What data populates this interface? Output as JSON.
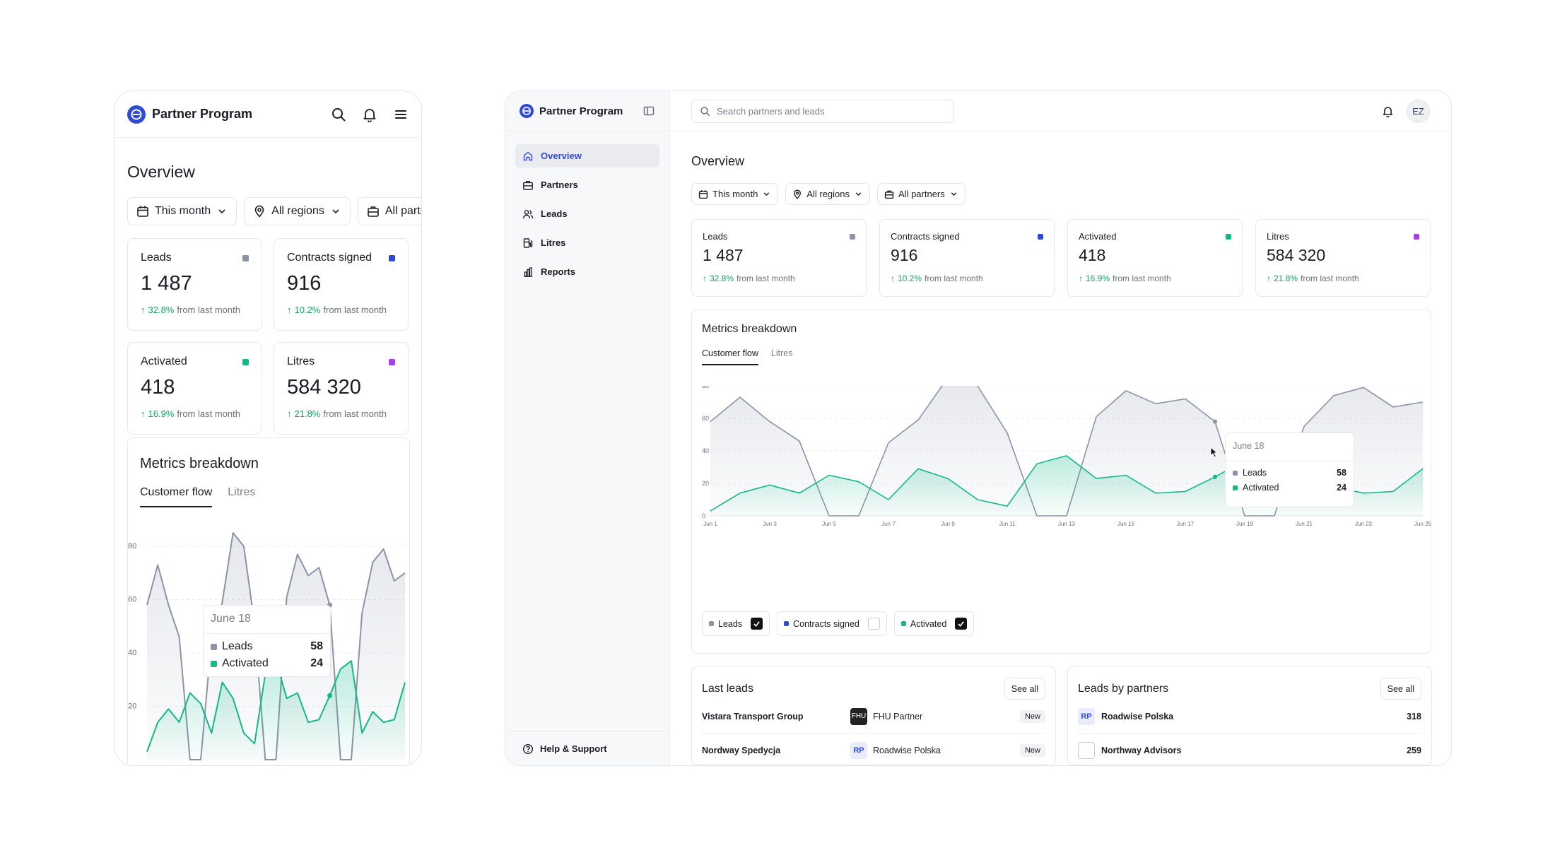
{
  "app": {
    "name": "Partner Program"
  },
  "mobile": {
    "title": "Overview",
    "filters": [
      "This month",
      "All regions",
      "All partners"
    ],
    "metrics_title": "Metrics breakdown",
    "tabs": [
      "Customer flow",
      "Litres"
    ],
    "y_ticks": [
      "80",
      "60",
      "40",
      "20"
    ]
  },
  "desktop": {
    "search_placeholder": "Search partners and leads",
    "user_initials": "EZ",
    "nav": [
      {
        "label": "Overview",
        "icon": "home-icon",
        "active": true
      },
      {
        "label": "Partners",
        "icon": "briefcase-icon"
      },
      {
        "label": "Leads",
        "icon": "users-icon"
      },
      {
        "label": "Litres",
        "icon": "fuel-icon"
      },
      {
        "label": "Reports",
        "icon": "bar-chart-icon"
      }
    ],
    "help_label": "Help & Support",
    "title": "Overview",
    "filters": [
      "This month",
      "All regions",
      "All partners"
    ],
    "metrics_title": "Metrics breakdown",
    "tabs": [
      "Customer flow",
      "Litres"
    ],
    "legend": [
      {
        "label": "Leads",
        "checked": true,
        "color": "#8b93a7"
      },
      {
        "label": "Contracts signed",
        "checked": false,
        "color": "#2f4bd6"
      },
      {
        "label": "Activated",
        "checked": true,
        "color": "#12b886"
      }
    ],
    "last_leads": {
      "title": "Last leads",
      "see_all": "See all",
      "rows": [
        {
          "lead": "Vistara Transport Group",
          "badge": "FHU",
          "partner": "FHU Partner",
          "status": "New"
        },
        {
          "lead": "Nordway Spedycja",
          "badge": "RP",
          "partner": "Roadwise Polska",
          "status": "New"
        }
      ]
    },
    "leads_by_partners": {
      "title": "Leads by partners",
      "see_all": "See all",
      "rows": [
        {
          "badge": "RP",
          "partner": "Roadwise Polska",
          "count": "318"
        },
        {
          "badge": "",
          "partner": "Northway Advisors",
          "count": "259"
        }
      ]
    }
  },
  "kpis": [
    {
      "label": "Leads",
      "value": "1 487",
      "change": "32.8%",
      "suffix": "from last month",
      "color": "#8b93a7"
    },
    {
      "label": "Contracts signed",
      "value": "916",
      "change": "10.2%",
      "suffix": "from last month",
      "color": "#2f4bd6"
    },
    {
      "label": "Activated",
      "value": "418",
      "change": "16.9%",
      "suffix": "from last month",
      "color": "#12b886"
    },
    {
      "label": "Litres",
      "value": "584 320",
      "change": "21.8%",
      "suffix": "from last month",
      "color": "#a53fe6"
    }
  ],
  "tooltip": {
    "date": "June 18",
    "rows": [
      {
        "label": "Leads",
        "value": "58"
      },
      {
        "label": "Activated",
        "value": "24"
      }
    ]
  },
  "chart_data": {
    "type": "area",
    "x_ticks": [
      "Jun 1",
      "Jun 3",
      "Jun 5",
      "Jun 7",
      "Jun 9",
      "Jun 11",
      "Jun 13",
      "Jun 15",
      "Jun 17",
      "Jun 19",
      "Jun 21",
      "Jun 23",
      "Jun 25"
    ],
    "y_ticks": [
      "80",
      "60",
      "40",
      "20",
      "0"
    ],
    "ylim": [
      0,
      80
    ],
    "x": [
      1,
      2,
      3,
      4,
      5,
      6,
      7,
      8,
      9,
      10,
      11,
      12,
      13,
      14,
      15,
      16,
      17,
      18,
      19,
      20,
      21,
      22,
      23,
      24,
      25
    ],
    "series": [
      {
        "name": "Leads",
        "color": "#8b93a7",
        "values": [
          58,
          73,
          58,
          46,
          0,
          0,
          45,
          59,
          85,
          80,
          51,
          0,
          0,
          61,
          77,
          69,
          72,
          58,
          0,
          0,
          55,
          74,
          79,
          67,
          70
        ]
      },
      {
        "name": "Activated",
        "color": "#12b886",
        "values": [
          3,
          14,
          19,
          14,
          25,
          21,
          10,
          29,
          23,
          10,
          6,
          32,
          37,
          23,
          25,
          14,
          15,
          24,
          34,
          37,
          10,
          18,
          14,
          15,
          29
        ]
      }
    ],
    "highlight_index": 17,
    "grid": true
  }
}
